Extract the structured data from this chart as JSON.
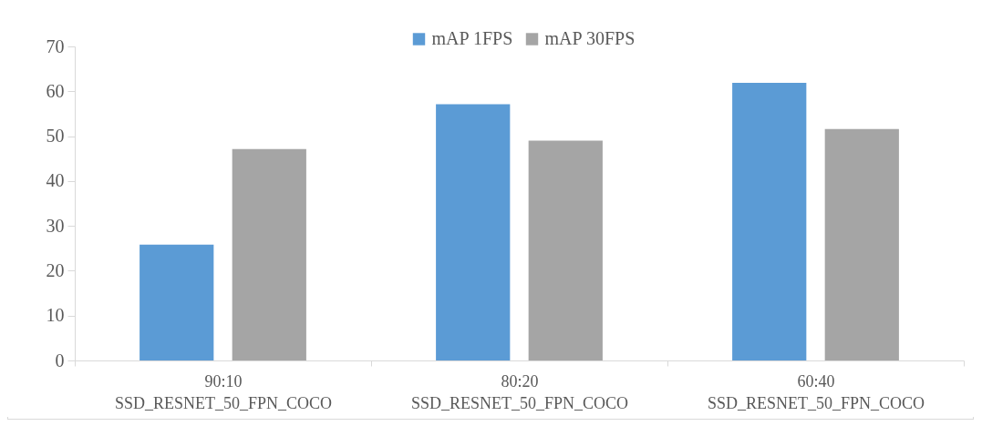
{
  "chart_data": {
    "type": "bar",
    "categories": [
      "90:10\nSSD_RESNET_50_FPN_COCO",
      "80:20\nSSD_RESNET_50_FPN_COCO",
      "60:40\nSSD_RESNET_50_FPN_COCO"
    ],
    "series": [
      {
        "name": "mAP 1FPS",
        "color": "#5b9bd5",
        "values": [
          25.8,
          57.1,
          61.9
        ]
      },
      {
        "name": "mAP 30FPS",
        "color": "#a5a5a5",
        "values": [
          47.1,
          49.0,
          51.6
        ]
      }
    ],
    "ylim": [
      0,
      70
    ],
    "yticks": [
      0,
      10,
      20,
      30,
      40,
      50,
      60,
      70
    ],
    "grid": false,
    "legend": "top"
  }
}
